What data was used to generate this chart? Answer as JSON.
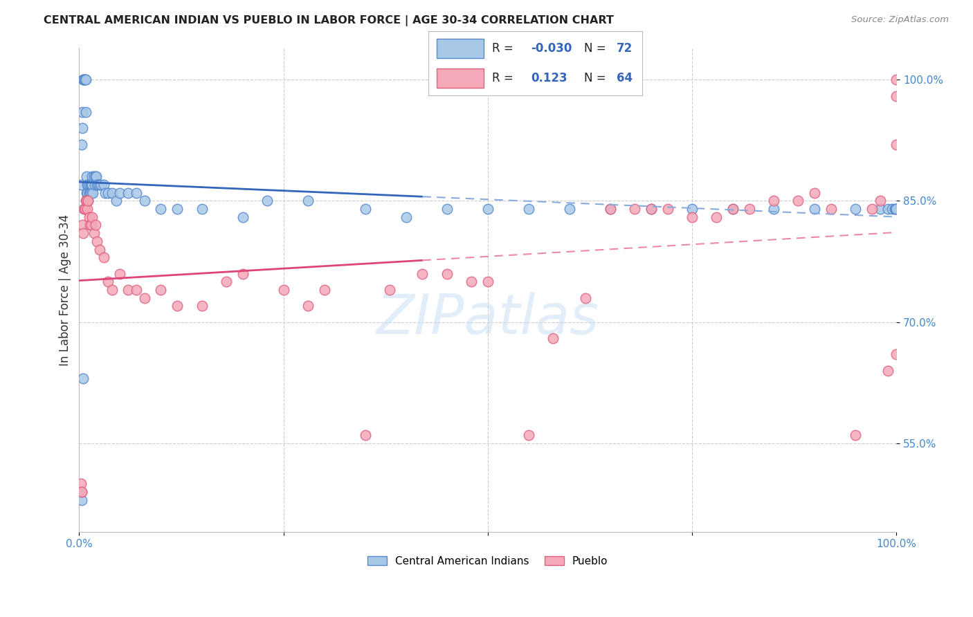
{
  "title": "CENTRAL AMERICAN INDIAN VS PUEBLO IN LABOR FORCE | AGE 30-34 CORRELATION CHART",
  "source": "Source: ZipAtlas.com",
  "ylabel": "In Labor Force | Age 30-34",
  "xlim": [
    0.0,
    1.0
  ],
  "ylim": [
    0.44,
    1.04
  ],
  "y_tick_positions": [
    0.55,
    0.7,
    0.85,
    1.0
  ],
  "color_blue": "#a8c8e8",
  "color_pink": "#f4a8b8",
  "edge_blue": "#5588cc",
  "edge_pink": "#e06080",
  "line_blue_color": "#3366bb",
  "line_pink_color": "#dd4477",
  "line_dash_blue": "#88aadd",
  "line_dash_pink": "#ee88aa",
  "blue_x": [
    0.002,
    0.003,
    0.004,
    0.004,
    0.005,
    0.006,
    0.006,
    0.007,
    0.007,
    0.008,
    0.008,
    0.009,
    0.009,
    0.01,
    0.01,
    0.01,
    0.011,
    0.011,
    0.012,
    0.012,
    0.013,
    0.013,
    0.014,
    0.015,
    0.015,
    0.016,
    0.016,
    0.017,
    0.018,
    0.019,
    0.02,
    0.021,
    0.022,
    0.023,
    0.025,
    0.027,
    0.03,
    0.032,
    0.035,
    0.04,
    0.045,
    0.05,
    0.06,
    0.07,
    0.08,
    0.1,
    0.12,
    0.15,
    0.2,
    0.23,
    0.28,
    0.35,
    0.4,
    0.45,
    0.5,
    0.55,
    0.6,
    0.65,
    0.7,
    0.75,
    0.8,
    0.85,
    0.9,
    0.95,
    0.98,
    0.99,
    0.995,
    0.998,
    0.999,
    1.0,
    0.003,
    0.005
  ],
  "blue_y": [
    0.87,
    0.92,
    0.96,
    0.94,
    1.0,
    1.0,
    1.0,
    1.0,
    1.0,
    1.0,
    0.96,
    0.88,
    0.86,
    0.86,
    0.87,
    0.85,
    0.87,
    0.85,
    0.87,
    0.86,
    0.86,
    0.86,
    0.87,
    0.87,
    0.86,
    0.88,
    0.87,
    0.86,
    0.88,
    0.87,
    0.88,
    0.88,
    0.87,
    0.87,
    0.87,
    0.87,
    0.87,
    0.86,
    0.86,
    0.86,
    0.85,
    0.86,
    0.86,
    0.86,
    0.85,
    0.84,
    0.84,
    0.84,
    0.83,
    0.85,
    0.85,
    0.84,
    0.83,
    0.84,
    0.84,
    0.84,
    0.84,
    0.84,
    0.84,
    0.84,
    0.84,
    0.84,
    0.84,
    0.84,
    0.84,
    0.84,
    0.84,
    0.84,
    0.84,
    0.84,
    0.48,
    0.63
  ],
  "pink_x": [
    0.002,
    0.003,
    0.004,
    0.005,
    0.006,
    0.007,
    0.007,
    0.008,
    0.009,
    0.01,
    0.011,
    0.012,
    0.013,
    0.015,
    0.016,
    0.018,
    0.02,
    0.022,
    0.025,
    0.03,
    0.035,
    0.04,
    0.05,
    0.06,
    0.07,
    0.08,
    0.1,
    0.12,
    0.15,
    0.18,
    0.2,
    0.25,
    0.28,
    0.3,
    0.35,
    0.38,
    0.42,
    0.45,
    0.48,
    0.5,
    0.55,
    0.58,
    0.62,
    0.65,
    0.68,
    0.7,
    0.72,
    0.75,
    0.78,
    0.8,
    0.82,
    0.85,
    0.88,
    0.9,
    0.92,
    0.95,
    0.97,
    0.98,
    0.99,
    1.0,
    1.0,
    1.0,
    1.0,
    0.003
  ],
  "pink_y": [
    0.5,
    0.49,
    0.82,
    0.81,
    0.84,
    0.84,
    0.84,
    0.85,
    0.85,
    0.84,
    0.85,
    0.83,
    0.82,
    0.82,
    0.83,
    0.81,
    0.82,
    0.8,
    0.79,
    0.78,
    0.75,
    0.74,
    0.76,
    0.74,
    0.74,
    0.73,
    0.74,
    0.72,
    0.72,
    0.75,
    0.76,
    0.74,
    0.72,
    0.74,
    0.56,
    0.74,
    0.76,
    0.76,
    0.75,
    0.75,
    0.56,
    0.68,
    0.73,
    0.84,
    0.84,
    0.84,
    0.84,
    0.83,
    0.83,
    0.84,
    0.84,
    0.85,
    0.85,
    0.86,
    0.84,
    0.56,
    0.84,
    0.85,
    0.64,
    0.98,
    1.0,
    0.92,
    0.66,
    0.49
  ]
}
